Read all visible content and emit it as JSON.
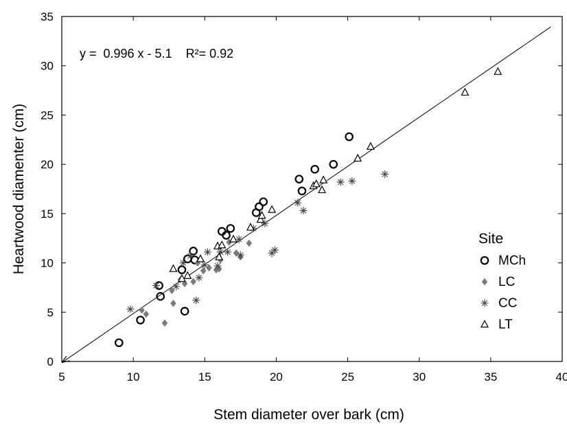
{
  "chart_data": {
    "type": "scatter",
    "xlabel": "Stem diameter over bark (cm)",
    "ylabel": "Heartwood diamenter (cm)",
    "xlim": [
      5,
      40
    ],
    "ylim": [
      0,
      35
    ],
    "xticks": [
      5,
      10,
      15,
      20,
      25,
      30,
      35,
      40
    ],
    "yticks": [
      0,
      5,
      10,
      15,
      20,
      25,
      30,
      35
    ],
    "grid": false,
    "legend": {
      "title": "Site",
      "position": "right"
    },
    "equation": "y =  0.996 x - 5.1    R²= 0.92",
    "fit_line": {
      "slope": 0.996,
      "intercept": -5.1,
      "x_range": [
        5,
        39.2
      ]
    },
    "series": [
      {
        "name": "MCh",
        "marker": "circle",
        "points": [
          [
            9.0,
            1.9
          ],
          [
            10.5,
            4.2
          ],
          [
            11.8,
            7.7
          ],
          [
            11.9,
            6.6
          ],
          [
            13.4,
            9.3
          ],
          [
            13.6,
            5.1
          ],
          [
            13.8,
            10.4
          ],
          [
            14.2,
            11.2
          ],
          [
            14.3,
            10.3
          ],
          [
            16.2,
            13.2
          ],
          [
            16.5,
            12.8
          ],
          [
            16.8,
            13.5
          ],
          [
            18.6,
            15.1
          ],
          [
            18.8,
            15.7
          ],
          [
            19.1,
            16.2
          ],
          [
            21.6,
            18.5
          ],
          [
            21.8,
            17.3
          ],
          [
            22.7,
            19.5
          ],
          [
            24.0,
            20.0
          ],
          [
            25.1,
            22.8
          ]
        ]
      },
      {
        "name": "LC",
        "marker": "diamond",
        "points": [
          [
            10.6,
            5.2
          ],
          [
            10.9,
            4.8
          ],
          [
            12.2,
            3.9
          ],
          [
            12.7,
            7.2
          ],
          [
            12.8,
            5.9
          ],
          [
            13.3,
            8.3
          ],
          [
            13.6,
            7.9
          ],
          [
            14.2,
            8.1
          ],
          [
            14.5,
            10.0
          ],
          [
            14.9,
            9.2
          ],
          [
            15.3,
            9.5
          ],
          [
            15.8,
            9.3
          ],
          [
            16.0,
            9.4
          ],
          [
            16.1,
            10.3
          ],
          [
            16.7,
            12.1
          ],
          [
            17.2,
            11.0
          ],
          [
            17.5,
            10.6
          ],
          [
            18.1,
            12.0
          ]
        ]
      },
      {
        "name": "CC",
        "marker": "asterisk",
        "points": [
          [
            9.8,
            5.3
          ],
          [
            11.6,
            7.7
          ],
          [
            13.0,
            7.6
          ],
          [
            13.5,
            10.0
          ],
          [
            14.0,
            10.7
          ],
          [
            14.4,
            6.2
          ],
          [
            14.6,
            8.5
          ],
          [
            15.0,
            9.8
          ],
          [
            15.2,
            11.1
          ],
          [
            15.9,
            9.7
          ],
          [
            16.1,
            11.1
          ],
          [
            16.6,
            11.1
          ],
          [
            17.4,
            12.4
          ],
          [
            17.5,
            10.8
          ],
          [
            18.4,
            13.5
          ],
          [
            19.2,
            14.0
          ],
          [
            19.7,
            11.0
          ],
          [
            19.9,
            11.3
          ],
          [
            21.5,
            16.1
          ],
          [
            21.9,
            15.3
          ],
          [
            24.5,
            18.2
          ],
          [
            25.3,
            18.3
          ],
          [
            27.6,
            19.0
          ]
        ]
      },
      {
        "name": "LT",
        "marker": "triangle",
        "points": [
          [
            12.8,
            9.4
          ],
          [
            13.4,
            8.4
          ],
          [
            13.8,
            8.7
          ],
          [
            14.7,
            10.4
          ],
          [
            15.9,
            11.7
          ],
          [
            16.2,
            11.8
          ],
          [
            16.0,
            10.6
          ],
          [
            17.0,
            12.4
          ],
          [
            18.2,
            13.6
          ],
          [
            18.9,
            14.4
          ],
          [
            19.0,
            14.8
          ],
          [
            19.7,
            15.4
          ],
          [
            22.6,
            17.8
          ],
          [
            22.8,
            18.0
          ],
          [
            23.2,
            17.4
          ],
          [
            23.3,
            18.4
          ],
          [
            25.7,
            20.6
          ],
          [
            26.6,
            21.8
          ],
          [
            33.2,
            27.3
          ],
          [
            35.5,
            29.4
          ]
        ]
      }
    ]
  }
}
